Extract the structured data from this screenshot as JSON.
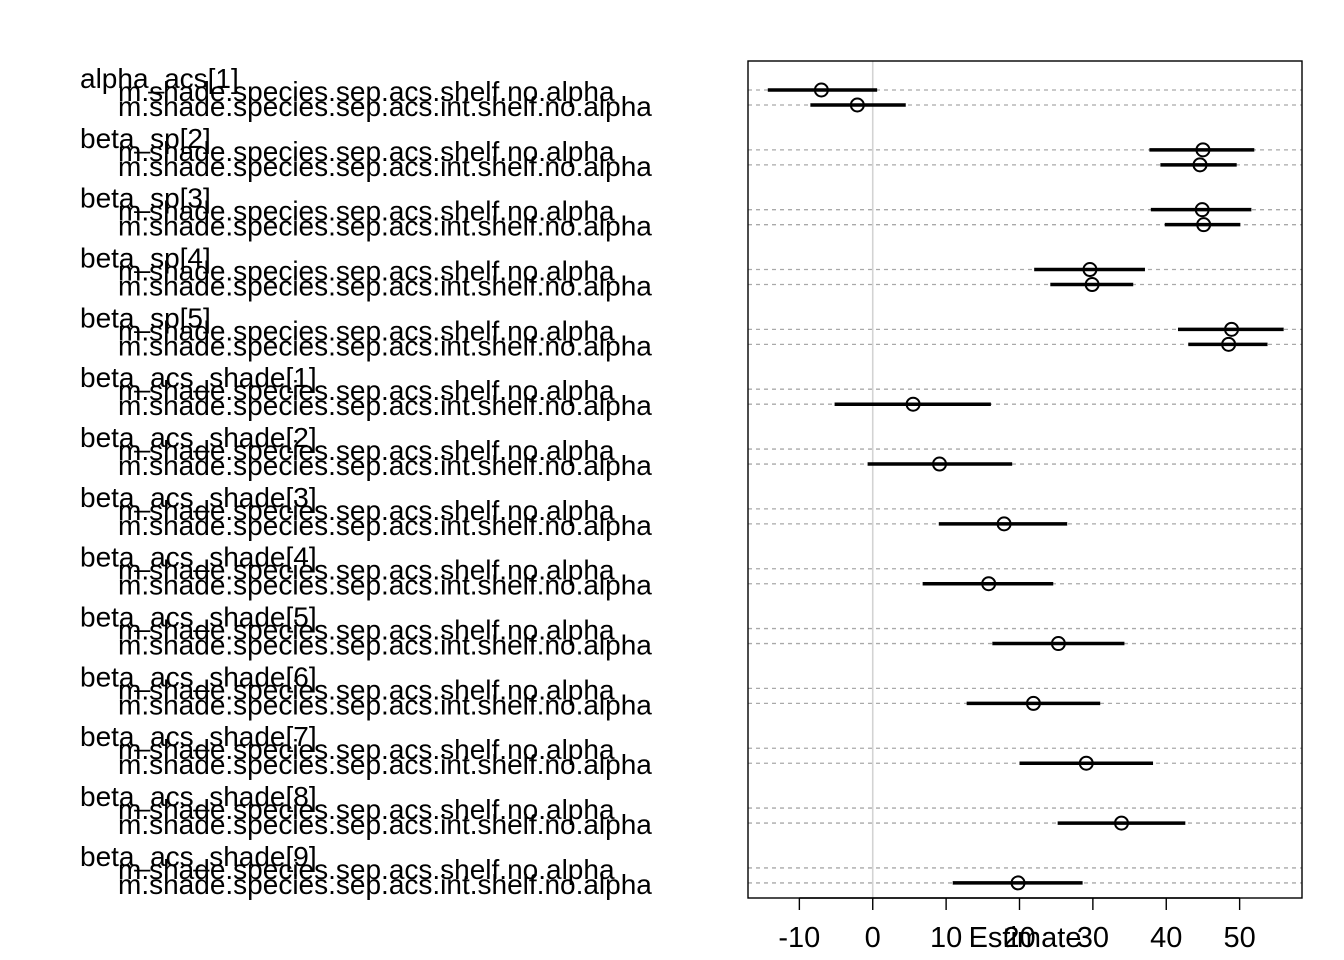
{
  "chart_data": {
    "type": "dotplot",
    "xlabel": "Estimate",
    "xlim": [
      -17,
      58.5
    ],
    "xticks": [
      -10,
      0,
      10,
      20,
      30,
      40,
      50
    ],
    "zero_line": 0,
    "grid": "horizontal-dashed",
    "series": [
      {
        "name": "m.shade.species.sep.acs.shelf.no.alpha"
      },
      {
        "name": "m.shade.species.sep.acs.int.shelf.no.alpha"
      }
    ],
    "parameters": [
      {
        "label": "alpha_acs[1]",
        "rows": [
          {
            "series": "m.shade.species.sep.acs.shelf.no.alpha",
            "estimate": -7.0,
            "lower": -14.3,
            "upper": 0.6
          },
          {
            "series": "m.shade.species.sep.acs.int.shelf.no.alpha",
            "estimate": -2.1,
            "lower": -8.5,
            "upper": 4.5
          }
        ]
      },
      {
        "label": "beta_sp[2]",
        "rows": [
          {
            "series": "m.shade.species.sep.acs.shelf.no.alpha",
            "estimate": 45.0,
            "lower": 37.7,
            "upper": 52.0
          },
          {
            "series": "m.shade.species.sep.acs.int.shelf.no.alpha",
            "estimate": 44.6,
            "lower": 39.2,
            "upper": 49.6
          }
        ]
      },
      {
        "label": "beta_sp[3]",
        "rows": [
          {
            "series": "m.shade.species.sep.acs.shelf.no.alpha",
            "estimate": 44.9,
            "lower": 37.9,
            "upper": 51.6
          },
          {
            "series": "m.shade.species.sep.acs.int.shelf.no.alpha",
            "estimate": 45.1,
            "lower": 39.8,
            "upper": 50.1
          }
        ]
      },
      {
        "label": "beta_sp[4]",
        "rows": [
          {
            "series": "m.shade.species.sep.acs.shelf.no.alpha",
            "estimate": 29.6,
            "lower": 22.0,
            "upper": 37.1
          },
          {
            "series": "m.shade.species.sep.acs.int.shelf.no.alpha",
            "estimate": 29.9,
            "lower": 24.2,
            "upper": 35.5
          }
        ]
      },
      {
        "label": "beta_sp[5]",
        "rows": [
          {
            "series": "m.shade.species.sep.acs.shelf.no.alpha",
            "estimate": 48.9,
            "lower": 41.6,
            "upper": 56.0
          },
          {
            "series": "m.shade.species.sep.acs.int.shelf.no.alpha",
            "estimate": 48.5,
            "lower": 43.0,
            "upper": 53.8
          }
        ]
      },
      {
        "label": "beta_acs_shade[1]",
        "rows": [
          {
            "series": "m.shade.species.sep.acs.shelf.no.alpha",
            "estimate": null,
            "lower": null,
            "upper": null
          },
          {
            "series": "m.shade.species.sep.acs.int.shelf.no.alpha",
            "estimate": 5.5,
            "lower": -5.2,
            "upper": 16.1
          }
        ]
      },
      {
        "label": "beta_acs_shade[2]",
        "rows": [
          {
            "series": "m.shade.species.sep.acs.shelf.no.alpha",
            "estimate": null,
            "lower": null,
            "upper": null
          },
          {
            "series": "m.shade.species.sep.acs.int.shelf.no.alpha",
            "estimate": 9.1,
            "lower": -0.7,
            "upper": 19.0
          }
        ]
      },
      {
        "label": "beta_acs_shade[3]",
        "rows": [
          {
            "series": "m.shade.species.sep.acs.shelf.no.alpha",
            "estimate": null,
            "lower": null,
            "upper": null
          },
          {
            "series": "m.shade.species.sep.acs.int.shelf.no.alpha",
            "estimate": 17.9,
            "lower": 9.0,
            "upper": 26.5
          }
        ]
      },
      {
        "label": "beta_acs_shade[4]",
        "rows": [
          {
            "series": "m.shade.species.sep.acs.shelf.no.alpha",
            "estimate": null,
            "lower": null,
            "upper": null
          },
          {
            "series": "m.shade.species.sep.acs.int.shelf.no.alpha",
            "estimate": 15.8,
            "lower": 6.8,
            "upper": 24.6
          }
        ]
      },
      {
        "label": "beta_acs_shade[5]",
        "rows": [
          {
            "series": "m.shade.species.sep.acs.shelf.no.alpha",
            "estimate": null,
            "lower": null,
            "upper": null
          },
          {
            "series": "m.shade.species.sep.acs.int.shelf.no.alpha",
            "estimate": 25.3,
            "lower": 16.3,
            "upper": 34.3
          }
        ]
      },
      {
        "label": "beta_acs_shade[6]",
        "rows": [
          {
            "series": "m.shade.species.sep.acs.shelf.no.alpha",
            "estimate": null,
            "lower": null,
            "upper": null
          },
          {
            "series": "m.shade.species.sep.acs.int.shelf.no.alpha",
            "estimate": 21.9,
            "lower": 12.8,
            "upper": 31.0
          }
        ]
      },
      {
        "label": "beta_acs_shade[7]",
        "rows": [
          {
            "series": "m.shade.species.sep.acs.shelf.no.alpha",
            "estimate": null,
            "lower": null,
            "upper": null
          },
          {
            "series": "m.shade.species.sep.acs.int.shelf.no.alpha",
            "estimate": 29.1,
            "lower": 20.0,
            "upper": 38.2
          }
        ]
      },
      {
        "label": "beta_acs_shade[8]",
        "rows": [
          {
            "series": "m.shade.species.sep.acs.shelf.no.alpha",
            "estimate": null,
            "lower": null,
            "upper": null
          },
          {
            "series": "m.shade.species.sep.acs.int.shelf.no.alpha",
            "estimate": 33.9,
            "lower": 25.2,
            "upper": 42.6
          }
        ]
      },
      {
        "label": "beta_acs_shade[9]",
        "rows": [
          {
            "series": "m.shade.species.sep.acs.shelf.no.alpha",
            "estimate": null,
            "lower": null,
            "upper": null
          },
          {
            "series": "m.shade.species.sep.acs.int.shelf.no.alpha",
            "estimate": 19.8,
            "lower": 10.9,
            "upper": 28.6
          }
        ]
      }
    ]
  }
}
